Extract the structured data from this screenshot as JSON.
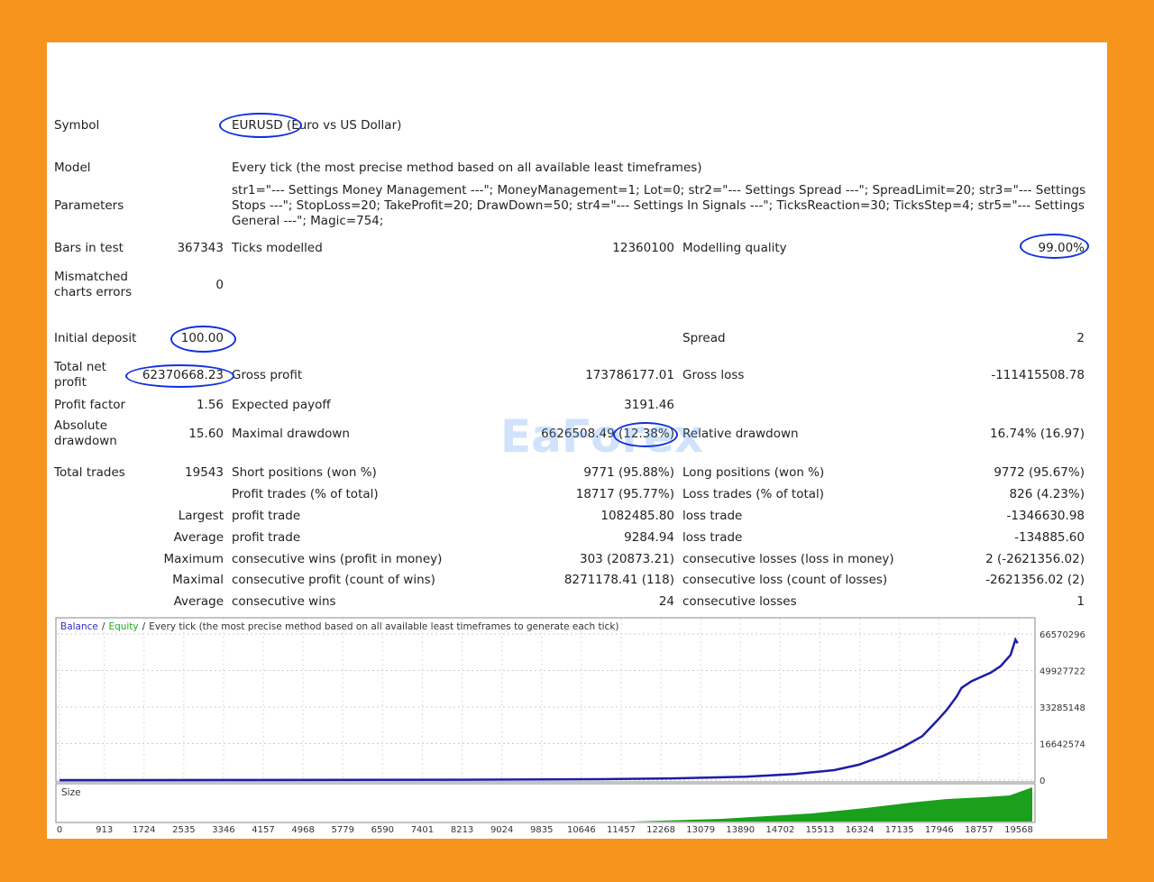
{
  "report": {
    "header_rows": [
      {
        "label": "Symbol",
        "value": "EURUSD (Euro vs US Dollar)"
      },
      {
        "label": "Model",
        "value": "Every tick (the most precise method based on all available least timeframes)"
      },
      {
        "label": "Parameters",
        "value": "str1=\"--- Settings Money Management ---\"; MoneyManagement=1; Lot=0; str2=\"--- Settings Spread ---\"; SpreadLimit=20; str3=\"--- Settings Stops ---\"; StopLoss=20; TakeProfit=20; DrawDown=50; str4=\"--- Settings In Signals ---\"; TicksReaction=30; TicksStep=4; str5=\"--- Settings General ---\"; Magic=754;"
      }
    ],
    "rows": [
      [
        "Bars in test",
        "367343",
        "Ticks modelled",
        "12360100",
        "Modelling quality",
        "99.00%"
      ],
      [
        "Mismatched charts errors",
        "0",
        null,
        null,
        null,
        null
      ],
      [
        "Initial deposit",
        "100.00",
        null,
        null,
        "Spread",
        "2"
      ],
      [
        "Total net profit",
        "62370668.23",
        "Gross profit",
        "173786177.01",
        "Gross loss",
        "-111415508.78"
      ],
      [
        "Profit factor",
        "1.56",
        "Expected payoff",
        "3191.46",
        null,
        null
      ],
      [
        "Absolute drawdown",
        "15.60",
        "Maximal drawdown",
        "6626508.49 (12.38%)",
        "Relative drawdown",
        "16.74% (16.97)"
      ],
      [
        "Total trades",
        "19543",
        "Short positions (won %)",
        "9771 (95.88%)",
        "Long positions (won %)",
        "9772 (95.67%)"
      ],
      [
        null,
        null,
        "Profit trades (% of total)",
        "18717 (95.77%)",
        "Loss trades (% of total)",
        "826 (4.23%)"
      ],
      [
        null,
        "Largest",
        "profit trade",
        "1082485.80",
        "loss trade",
        "-1346630.98"
      ],
      [
        null,
        "Average",
        "profit trade",
        "9284.94",
        "loss trade",
        "-134885.60"
      ],
      [
        null,
        "Maximum",
        "consecutive wins (profit in money)",
        "303 (20873.21)",
        "consecutive losses (loss in money)",
        "2 (-2621356.02)"
      ],
      [
        null,
        "Maximal",
        "consecutive profit (count of wins)",
        "8271178.41 (118)",
        "consecutive loss (count of losses)",
        "-2621356.02 (2)"
      ],
      [
        null,
        "Average",
        "consecutive wins",
        "24",
        "consecutive losses",
        "1"
      ]
    ],
    "watermark": "EaForex"
  },
  "chart": {
    "type": "line",
    "legend": [
      {
        "label": "Balance",
        "color": "#2b2bd0"
      },
      {
        "label": "Equity",
        "color": "#22aa22"
      }
    ],
    "legend_separator": "/",
    "subtitle": "Every tick (the most precise method based on all available least timeframes to generate each tick)",
    "size_label": "Size",
    "series": [
      {
        "name": "Balance",
        "color": "#1c1ca8",
        "x": [
          0,
          4000,
          8000,
          11000,
          12500,
          14000,
          15000,
          15800,
          16300,
          16800,
          17200,
          17600,
          17900,
          18100,
          18300,
          18400,
          18600,
          18800,
          19000,
          19200,
          19400,
          19500,
          19543
        ],
        "values": [
          100,
          50000,
          150000,
          400000,
          800000,
          1500000,
          2800000,
          4500000,
          7000000,
          11000000,
          15000000,
          20000000,
          27000000,
          32000000,
          38000000,
          42000000,
          45000000,
          47000000,
          49000000,
          52000000,
          57000000,
          64000000,
          62370768
        ]
      }
    ],
    "xlim": [
      0,
      19844
    ],
    "xticks": [
      0,
      913,
      1724,
      2535,
      3346,
      4157,
      4968,
      5779,
      6590,
      7401,
      8213,
      9024,
      9835,
      10646,
      11457,
      12268,
      13079,
      13890,
      14702,
      15513,
      16324,
      17135,
      17946,
      18757,
      19568
    ],
    "ylim": [
      0,
      73150000
    ],
    "yticks": [
      0,
      16642574,
      33285148,
      49927722,
      66570296
    ],
    "grid": true
  }
}
